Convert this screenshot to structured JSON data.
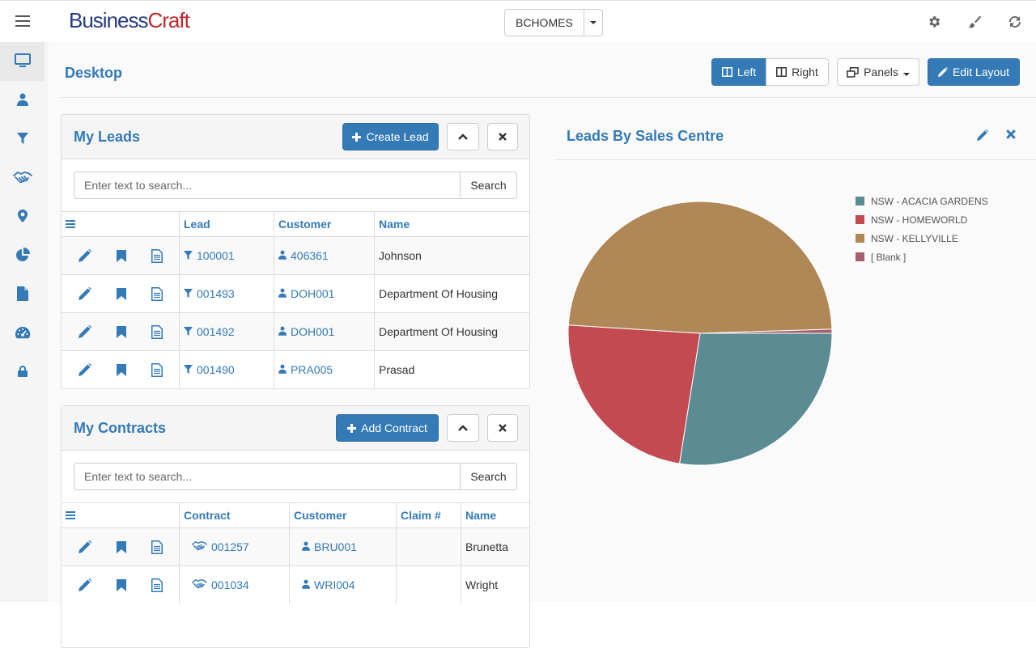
{
  "app": {
    "logo_part1": "Business",
    "logo_part2": "Craft",
    "company": "BCHOMES"
  },
  "topbar_icons": [
    "gear-icon",
    "brush-icon",
    "refresh-icon"
  ],
  "sidebar": {
    "items": [
      "desktop-icon",
      "user-icon",
      "filter-icon",
      "handshake-icon",
      "map-marker-icon",
      "pie-chart-icon",
      "document-icon",
      "dashboard-icon",
      "lock-icon"
    ]
  },
  "page": {
    "title": "Desktop"
  },
  "toolbar": {
    "left_label": "Left",
    "right_label": "Right",
    "panels_label": "Panels",
    "edit_layout_label": "Edit Layout"
  },
  "leads": {
    "title": "My Leads",
    "create_label": "Create Lead",
    "search_placeholder": "Enter text to search...",
    "search_button": "Search",
    "columns": {
      "lead": "Lead",
      "customer": "Customer",
      "name": "Name"
    },
    "rows": [
      {
        "lead": "100001",
        "customer": "406361",
        "name": "Johnson"
      },
      {
        "lead": "001493",
        "customer": "DOH001",
        "name": "Department Of Housing"
      },
      {
        "lead": "001492",
        "customer": "DOH001",
        "name": "Department Of Housing"
      },
      {
        "lead": "001490",
        "customer": "PRA005",
        "name": "Prasad"
      }
    ]
  },
  "contracts": {
    "title": "My Contracts",
    "add_label": "Add Contract",
    "search_placeholder": "Enter text to search...",
    "search_button": "Search",
    "columns": {
      "contract": "Contract",
      "customer": "Customer",
      "claim": "Claim #",
      "name": "Name"
    },
    "rows": [
      {
        "contract": "001257",
        "customer": "BRU001",
        "claim": "",
        "name": "Brunetta"
      },
      {
        "contract": "001034",
        "customer": "WRI004",
        "claim": "",
        "name": "Wright"
      }
    ]
  },
  "chart_panel": {
    "title": "Leads By Sales Centre"
  },
  "chart_data": {
    "type": "pie",
    "title": "Leads By Sales Centre",
    "legend_position": "top-right",
    "categories": [
      "NSW - ACACIA GARDENS",
      "NSW - HOMEWORLD",
      "NSW - KELLYVILLE",
      "[ Blank ]"
    ],
    "values": [
      27.5,
      23.5,
      48.5,
      0.5
    ],
    "colors": [
      "#5b8c93",
      "#c34a51",
      "#b08756",
      "#a45f70"
    ]
  }
}
